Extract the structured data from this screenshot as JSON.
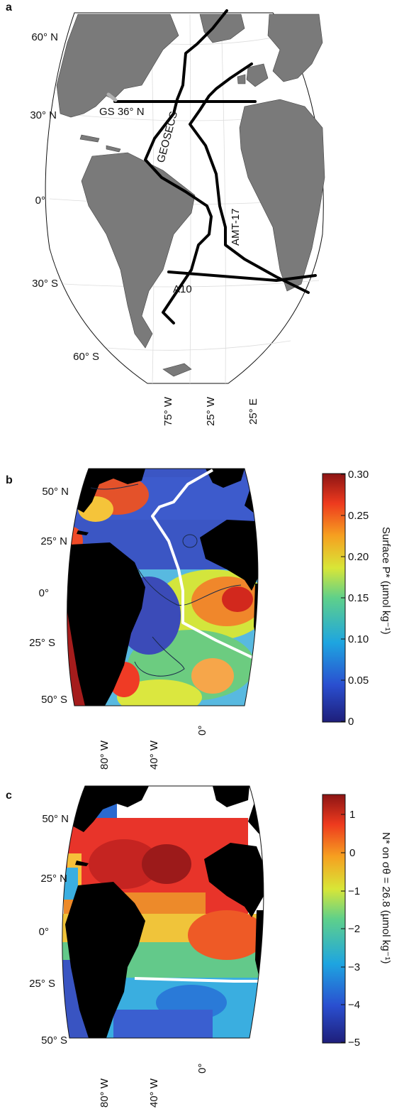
{
  "panels": {
    "a": {
      "letter": "a",
      "lat_labels": [
        "60° N",
        "30° N",
        "0°",
        "30° S",
        "60° S"
      ],
      "lon_labels": [
        "75° W",
        "25° W",
        "25° E"
      ],
      "transects": [
        "GS 36° N",
        "GEOSECS",
        "AMT-17",
        "A10"
      ]
    },
    "b": {
      "letter": "b",
      "lat_labels": [
        "50° N",
        "25° N",
        "0°",
        "25° S",
        "50° S"
      ],
      "lon_labels": [
        "80° W",
        "40° W",
        "0°"
      ],
      "colorbar": {
        "ticks": [
          "0.30",
          "0.25",
          "0.20",
          "0.15",
          "0.10",
          "0.05",
          "0"
        ],
        "label": "Surface P* (µmol kg⁻¹)"
      }
    },
    "c": {
      "letter": "c",
      "lat_labels": [
        "50° N",
        "25° N",
        "0°",
        "25° S",
        "50° S"
      ],
      "lon_labels": [
        "80° W",
        "40° W",
        "0°"
      ],
      "colorbar": {
        "ticks": [
          "1",
          "0",
          "−1",
          "−2",
          "−3",
          "−4",
          "−5"
        ],
        "label": "N* on σθ = 26.8 (µmol kg⁻¹)"
      }
    }
  },
  "colors": {
    "land_a": "#7a7a7a",
    "land_bc": "#000000",
    "track": "#000000",
    "track_highlight": "#ffffff",
    "gs_start": "#b0b0b0"
  }
}
